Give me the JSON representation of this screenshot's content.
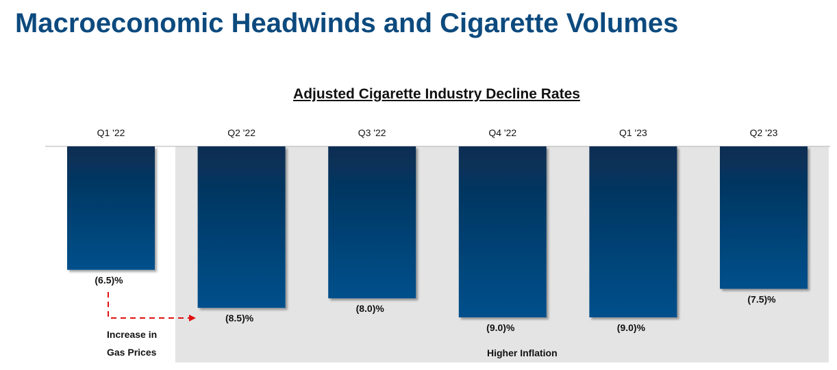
{
  "header": {
    "title": "Macroeconomic Headwinds and Cigarette Volumes"
  },
  "chart_data": {
    "type": "bar",
    "title": "Adjusted Cigarette Industry Decline Rates",
    "categories": [
      "Q1 '22",
      "Q2 '22",
      "Q3 '22",
      "Q4 '22",
      "Q1 '23",
      "Q2 '23"
    ],
    "values": [
      -6.5,
      -8.5,
      -8.0,
      -9.0,
      -9.0,
      -7.5
    ],
    "value_labels": [
      "(6.5)%",
      "(8.5)%",
      "(8.0)%",
      "(9.0)%",
      "(9.0)%",
      "(7.5)%"
    ],
    "xlabel": "",
    "ylabel": "",
    "ylim": [
      -9.0,
      0
    ],
    "bar_color_top": "#082d52",
    "bar_color_bottom": "#00508c",
    "shaded_region_color": "#e4e4e4"
  },
  "annotations": {
    "gas_prices": [
      "Increase in",
      "Gas Prices"
    ],
    "inflation": "Higher Inflation",
    "arrow_color": "#e01010"
  }
}
